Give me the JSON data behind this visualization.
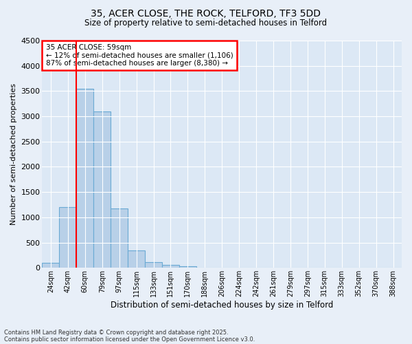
{
  "title_line1": "35, ACER CLOSE, THE ROCK, TELFORD, TF3 5DD",
  "title_line2": "Size of property relative to semi-detached houses in Telford",
  "xlabel": "Distribution of semi-detached houses by size in Telford",
  "ylabel": "Number of semi-detached properties",
  "categories": [
    "24sqm",
    "42sqm",
    "60sqm",
    "79sqm",
    "97sqm",
    "115sqm",
    "133sqm",
    "151sqm",
    "170sqm",
    "188sqm",
    "206sqm",
    "224sqm",
    "242sqm",
    "261sqm",
    "279sqm",
    "297sqm",
    "315sqm",
    "333sqm",
    "352sqm",
    "370sqm",
    "388sqm"
  ],
  "values": [
    100,
    1200,
    3550,
    3100,
    1180,
    340,
    110,
    65,
    30,
    5,
    5,
    0,
    0,
    0,
    0,
    0,
    0,
    0,
    0,
    0,
    0
  ],
  "bar_color": "#b8d0e8",
  "bar_edge_color": "#6aaad4",
  "vline_x_idx": 2,
  "vline_color": "red",
  "annotation_title": "35 ACER CLOSE: 59sqm",
  "annotation_line1": "← 12% of semi-detached houses are smaller (1,106)",
  "annotation_line2": "87% of semi-detached houses are larger (8,380) →",
  "annotation_box_color": "red",
  "ylim": [
    0,
    4500
  ],
  "yticks": [
    0,
    500,
    1000,
    1500,
    2000,
    2500,
    3000,
    3500,
    4000,
    4500
  ],
  "footnote1": "Contains HM Land Registry data © Crown copyright and database right 2025.",
  "footnote2": "Contains public sector information licensed under the Open Government Licence v3.0.",
  "bg_color": "#e8eff8",
  "plot_bg_color": "#dce8f5"
}
